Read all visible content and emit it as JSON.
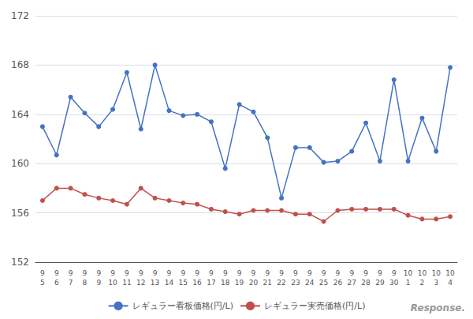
{
  "chart_data": {
    "type": "line",
    "categories": [
      "9\n5",
      "9\n6",
      "9\n7",
      "9\n8",
      "9\n9",
      "9\n10",
      "9\n11",
      "9\n12",
      "9\n13",
      "9\n14",
      "9\n15",
      "9\n16",
      "9\n17",
      "9\n18",
      "9\n19",
      "9\n20",
      "9\n21",
      "9\n22",
      "9\n23",
      "9\n24",
      "9\n25",
      "9\n26",
      "9\n27",
      "9\n28",
      "9\n29",
      "9\n30",
      "10\n1",
      "10\n2",
      "10\n3",
      "10\n4"
    ],
    "series": [
      {
        "name": "レギュラー看板価格(円/L)",
        "color": "#4472C4",
        "marker": "circle",
        "values": [
          163.0,
          160.7,
          165.4,
          164.1,
          163.0,
          164.4,
          167.4,
          162.8,
          168.0,
          164.3,
          163.9,
          164.0,
          163.4,
          159.6,
          164.8,
          164.2,
          162.1,
          157.2,
          161.3,
          161.3,
          160.1,
          160.2,
          161.0,
          163.3,
          160.2,
          166.8,
          160.2,
          163.7,
          161.0,
          167.8
        ]
      },
      {
        "name": "レギュラー実売価格(円/L)",
        "color": "#C0504D",
        "marker": "circle",
        "values": [
          157.0,
          158.0,
          158.0,
          157.5,
          157.2,
          157.0,
          156.7,
          158.0,
          157.2,
          157.0,
          156.8,
          156.7,
          156.3,
          156.1,
          155.9,
          156.2,
          156.2,
          156.2,
          155.9,
          155.9,
          155.3,
          156.2,
          156.3,
          156.3,
          156.3,
          156.3,
          155.8,
          155.5,
          155.5,
          155.7
        ]
      }
    ],
    "ylim": [
      152,
      172
    ],
    "yticks": [
      152,
      156,
      160,
      164,
      168,
      172
    ],
    "grid": true,
    "legend": "bottom",
    "annotations": [
      "Response."
    ]
  }
}
